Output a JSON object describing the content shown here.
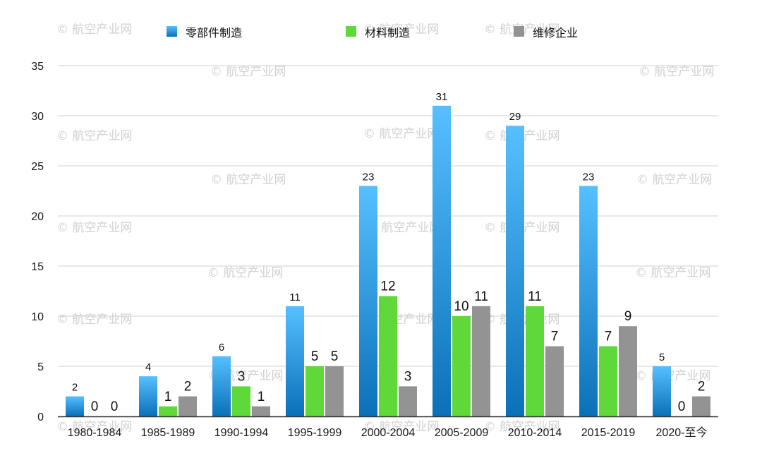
{
  "chart_data": {
    "type": "bar",
    "title": "",
    "xlabel": "",
    "ylabel": "",
    "ylim": [
      0,
      35
    ],
    "yticks": [
      0,
      5,
      10,
      15,
      20,
      25,
      30,
      35
    ],
    "grid": true,
    "legend_position": "top",
    "categories": [
      "1980-1984",
      "1985-1989",
      "1990-1994",
      "1995-1999",
      "2000-2004",
      "2005-2009",
      "2010-2014",
      "2015-2019",
      "2020-至今"
    ],
    "series": [
      {
        "name": "零部件制造",
        "color": "#3aa7ec",
        "values": [
          2,
          4,
          6,
          11,
          23,
          31,
          29,
          23,
          5
        ]
      },
      {
        "name": "材料制造",
        "color": "#5fd83a",
        "values": [
          0,
          1,
          3,
          5,
          12,
          10,
          11,
          7,
          0
        ]
      },
      {
        "name": "维修企业",
        "color": "#939393",
        "values": [
          0,
          2,
          1,
          5,
          3,
          11,
          7,
          9,
          2
        ]
      }
    ],
    "data_labels": true
  },
  "watermark": {
    "text": "© 航空产业网"
  }
}
